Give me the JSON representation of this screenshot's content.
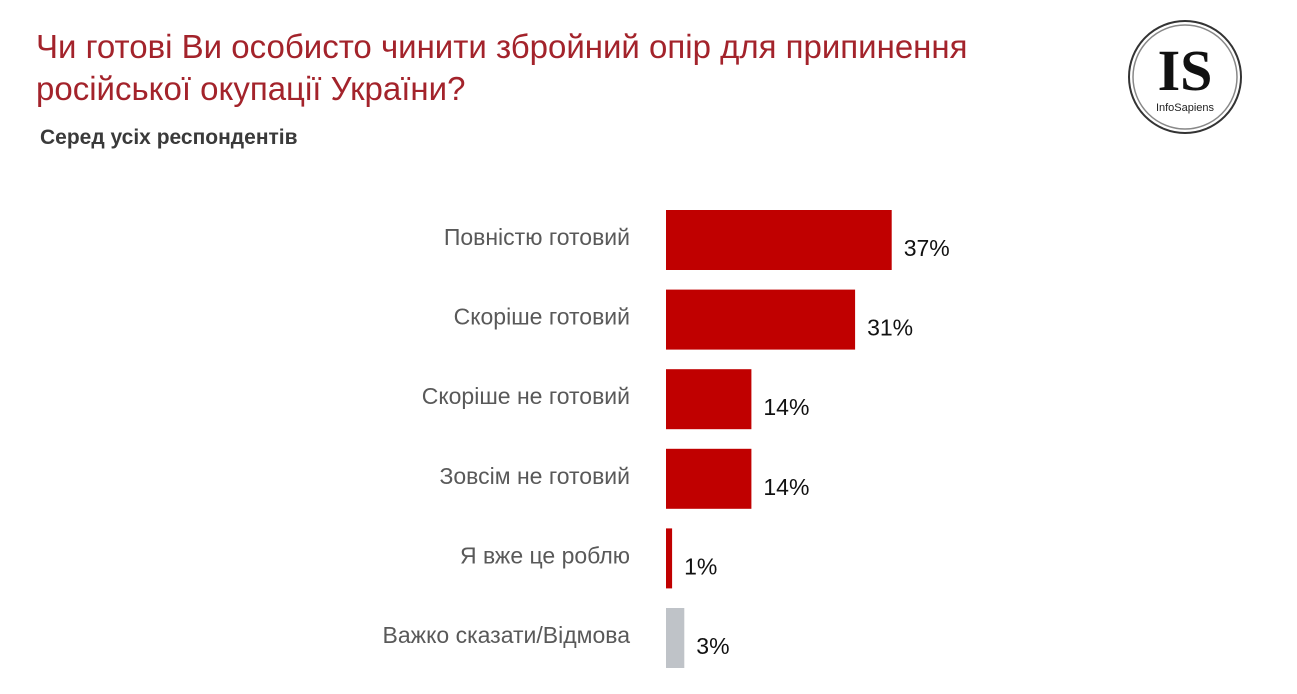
{
  "header": {
    "title": "Чи готові Ви особисто чинити збройний опір для припинення російської окупації України?",
    "subtitle": "Серед усіх респондентів",
    "logo_text": "IS",
    "logo_subtext": "InfoSapiens"
  },
  "chart_data": {
    "type": "bar",
    "orientation": "horizontal",
    "title": "Чи готові Ви особисто чинити збройний опір для припинення російської окупації України?",
    "subtitle": "Серед усіх респондентів",
    "categories": [
      "Повністю готовий",
      "Скоріше готовий",
      "Скоріше не готовий",
      "Зовсім не готовий",
      "Я вже це роблю",
      "Важко сказати/Відмова"
    ],
    "values": [
      37,
      31,
      14,
      14,
      1,
      3
    ],
    "labels": [
      "37%",
      "31%",
      "14%",
      "14%",
      "1%",
      "3%"
    ],
    "colors": [
      "#c00000",
      "#c00000",
      "#c00000",
      "#c00000",
      "#c00000",
      "#bfc3c8"
    ],
    "unit": "%",
    "xlim": [
      0,
      40
    ],
    "grid": false,
    "legend": "none"
  }
}
